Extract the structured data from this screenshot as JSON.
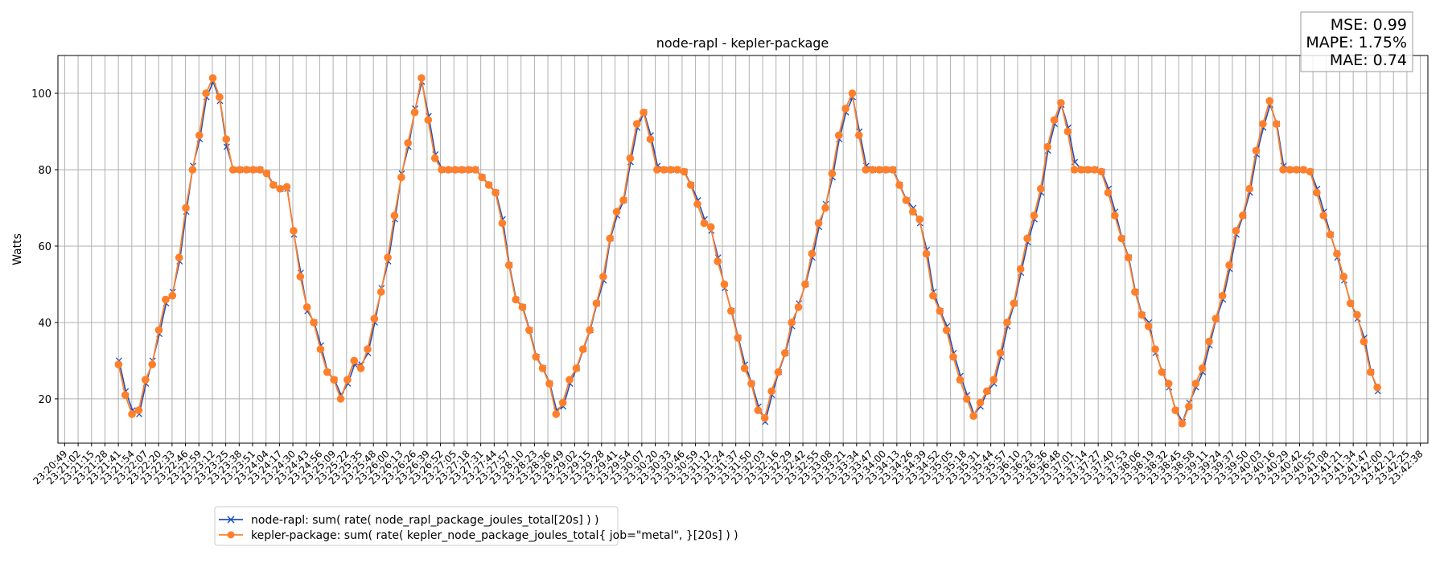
{
  "chart_data": {
    "type": "line",
    "title": "node-rapl - kepler-package",
    "xlabel": "",
    "ylabel": "Watts",
    "ylim": [
      8.4,
      109.9
    ],
    "yticks": [
      20,
      40,
      60,
      80,
      100
    ],
    "grid": true,
    "legend_position": "bottom-left, below axes",
    "xtick_labels": [
      "23:20:49",
      "23:21:02",
      "23:21:15",
      "23:21:28",
      "23:21:41",
      "23:21:54",
      "23:22:07",
      "23:22:20",
      "23:22:33",
      "23:22:46",
      "23:22:59",
      "23:23:12",
      "23:23:25",
      "23:23:38",
      "23:23:51",
      "23:24:04",
      "23:24:17",
      "23:24:30",
      "23:24:43",
      "23:24:56",
      "23:25:09",
      "23:25:22",
      "23:25:35",
      "23:25:48",
      "23:26:00",
      "23:26:13",
      "23:26:26",
      "23:26:39",
      "23:26:52",
      "23:27:05",
      "23:27:18",
      "23:27:31",
      "23:27:44",
      "23:27:57",
      "23:28:10",
      "23:28:23",
      "23:28:36",
      "23:28:49",
      "23:29:02",
      "23:29:15",
      "23:29:28",
      "23:29:41",
      "23:29:54",
      "23:30:07",
      "23:30:20",
      "23:30:33",
      "23:30:46",
      "23:30:59",
      "23:31:12",
      "23:31:24",
      "23:31:37",
      "23:31:50",
      "23:32:03",
      "23:32:16",
      "23:32:29",
      "23:32:42",
      "23:32:55",
      "23:33:08",
      "23:33:21",
      "23:33:34",
      "23:33:47",
      "23:34:00",
      "23:34:13",
      "23:34:26",
      "23:34:39",
      "23:34:52",
      "23:35:05",
      "23:35:18",
      "23:35:31",
      "23:35:44",
      "23:35:57",
      "23:36:10",
      "23:36:23",
      "23:36:36",
      "23:36:48",
      "23:37:01",
      "23:37:14",
      "23:37:27",
      "23:37:40",
      "23:37:53",
      "23:38:06",
      "23:38:19",
      "23:38:32",
      "23:38:45",
      "23:38:58",
      "23:39:11",
      "23:39:24",
      "23:39:37",
      "23:39:50",
      "23:40:03",
      "23:40:16",
      "23:40:29",
      "23:40:42",
      "23:40:55",
      "23:41:08",
      "23:41:21",
      "23:41:34",
      "23:41:47",
      "23:42:00",
      "23:42:12",
      "23:42:25",
      "23:42:38"
    ],
    "x_start": "23:21:41",
    "x_step_seconds": 6.5,
    "series": [
      {
        "name": "node-rapl: sum( rate( node_rapl_package_joules_total[20s] ) )",
        "color": "#1f4fbf",
        "marker": "x",
        "values": [
          30,
          22,
          17,
          16,
          24,
          30,
          37,
          45,
          48,
          56,
          69,
          81,
          88,
          99,
          103,
          98,
          86,
          80,
          80,
          80,
          80,
          80,
          79,
          76,
          75,
          75,
          63,
          53,
          43,
          40,
          34,
          27,
          25,
          21,
          24,
          29,
          29,
          32,
          40,
          49,
          56,
          67,
          79,
          86,
          96,
          103,
          94,
          84,
          80,
          80,
          80,
          80,
          80,
          80,
          78,
          76,
          74,
          67,
          55,
          46,
          44,
          38,
          31,
          28,
          24,
          17,
          18,
          24,
          28,
          33,
          38,
          45,
          51,
          62,
          68,
          72,
          82,
          91,
          95,
          89,
          81,
          80,
          80,
          80,
          79.5,
          76,
          72,
          67,
          64,
          57,
          49,
          43,
          36,
          29,
          24,
          18,
          14,
          21,
          27,
          32,
          39,
          45,
          50,
          57,
          65,
          71,
          78,
          88,
          95,
          99,
          90,
          81,
          80,
          80,
          80,
          80,
          76,
          72,
          70,
          66,
          59,
          48,
          43,
          39,
          32,
          26,
          21,
          16,
          18,
          22,
          24,
          31,
          39,
          45,
          53,
          61,
          67,
          74,
          85,
          92,
          97,
          91,
          82,
          80,
          80,
          80,
          79.5,
          75,
          69,
          62,
          57,
          48,
          42,
          40,
          32,
          27,
          23,
          17,
          14,
          19,
          23,
          27,
          34,
          41,
          46,
          54,
          63,
          68,
          74,
          84,
          91,
          97,
          92,
          81,
          80,
          80,
          80,
          79.5,
          75,
          69,
          63,
          57,
          51,
          45,
          41,
          36,
          27,
          22
        ]
      },
      {
        "name": "kepler-package: sum( rate( kepler_node_package_joules_total{ job=\"metal\", }[20s] ) )",
        "color": "#ff7f2a",
        "marker": "o",
        "values": [
          29,
          21,
          16,
          17,
          25,
          29,
          38,
          46,
          47,
          57,
          70,
          80,
          89,
          100,
          104,
          99,
          88,
          80,
          80,
          80,
          80,
          80,
          79,
          76,
          75,
          75.5,
          64,
          52,
          44,
          40,
          33,
          27,
          25,
          20,
          25,
          30,
          28,
          33,
          41,
          48,
          57,
          68,
          78,
          87,
          95,
          104,
          93,
          83,
          80,
          80,
          80,
          80,
          80,
          80,
          78,
          76,
          74,
          66,
          55,
          46,
          44,
          38,
          31,
          28,
          24,
          16,
          19,
          25,
          28,
          33,
          38,
          45,
          52,
          62,
          69,
          72,
          83,
          92,
          95,
          88,
          80,
          80,
          80,
          80,
          79.5,
          76,
          71,
          66,
          65,
          56,
          50,
          43,
          36,
          28,
          24,
          17,
          15,
          22,
          27,
          32,
          40,
          44,
          50,
          58,
          66,
          70,
          79,
          89,
          96,
          100,
          89,
          80,
          80,
          80,
          80,
          80,
          76,
          72,
          69,
          67,
          58,
          47,
          43,
          38,
          31,
          25,
          20,
          15.5,
          19,
          22,
          25,
          32,
          40,
          45,
          54,
          62,
          68,
          75,
          86,
          93,
          97.5,
          90,
          80,
          80,
          80,
          80,
          79.5,
          74,
          68,
          62,
          57,
          48,
          42,
          39,
          33,
          27,
          24,
          17,
          13.5,
          18,
          24,
          28,
          35,
          41,
          47,
          55,
          64,
          68,
          75,
          85,
          92,
          98,
          92,
          80,
          80,
          80,
          80,
          79.5,
          74,
          68,
          63,
          58,
          52,
          45,
          42,
          35,
          27,
          23
        ]
      }
    ],
    "stats": {
      "mse": "MSE: 0.99",
      "mape": "MAPE: 1.75%",
      "mae": "MAE: 0.74"
    }
  }
}
